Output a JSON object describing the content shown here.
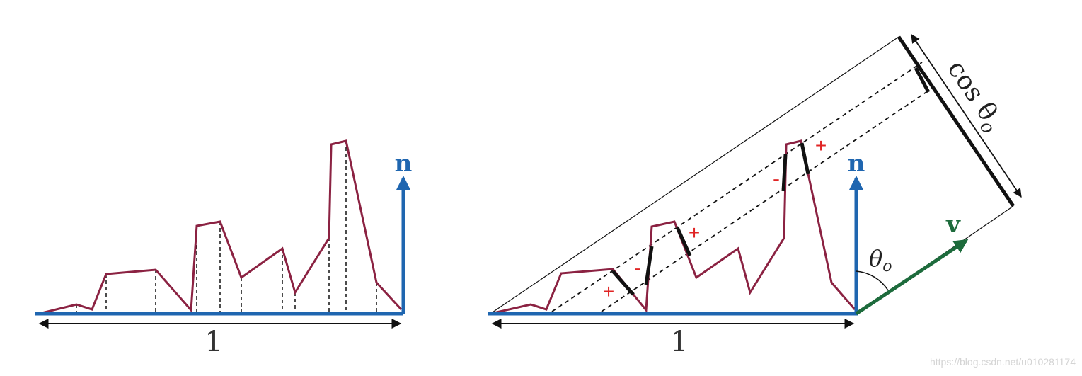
{
  "colors": {
    "surface": "#8b2242",
    "normal": "#1f66b0",
    "view": "#1d6b3c",
    "sign": "#e02424",
    "ink": "#111111",
    "watermark": "#d4d4d4"
  },
  "left_panel": {
    "width_label": "1",
    "normal_label": "n"
  },
  "right_panel": {
    "width_label": "1",
    "normal_label": "n",
    "view_label": "v",
    "angle_label": "θ",
    "angle_sub": "o",
    "projection_label": "cos θ",
    "projection_sub": "o",
    "signs": {
      "plus_1": "+",
      "minus_1": "-",
      "plus_2": "+",
      "minus_2": "-",
      "plus_3": "+"
    }
  },
  "watermark": "https://blog.csdn.net/u010281174"
}
